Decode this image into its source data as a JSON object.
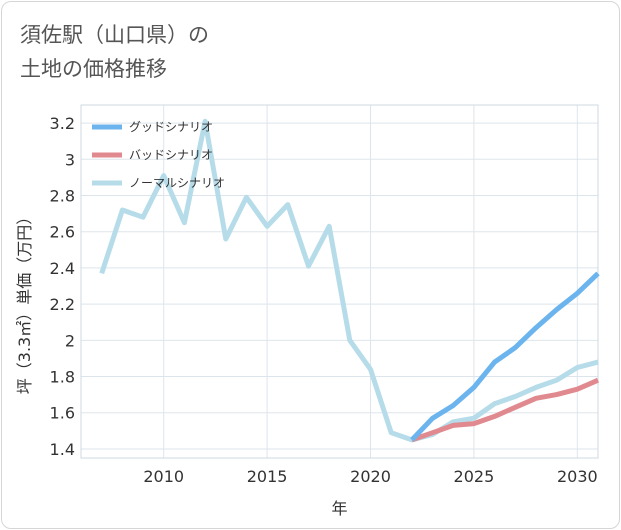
{
  "title_lines": [
    "須佐駅（山口県）の",
    "土地の価格推移"
  ],
  "chart_data": {
    "type": "line",
    "xlabel": "年",
    "ylabel": "坪（3.3㎡）単価（万円）",
    "xlim": [
      2006,
      2031
    ],
    "ylim": [
      1.35,
      3.3
    ],
    "x_ticks": [
      2010,
      2015,
      2020,
      2025,
      2030
    ],
    "y_ticks": [
      1.4,
      1.6,
      1.8,
      2,
      2.2,
      2.4,
      2.6,
      2.8,
      3,
      3.2
    ],
    "x_tick_labels": [
      "2010",
      "2015",
      "2020",
      "2025",
      "2030"
    ],
    "y_tick_labels": [
      "1.4",
      "1.6",
      "1.8",
      "2",
      "2.2",
      "2.4",
      "2.6",
      "2.8",
      "3",
      "3.2"
    ],
    "grid": true,
    "legend_position": "top-left",
    "series": [
      {
        "name": "グッドシナリオ",
        "color": "#6cb4ee",
        "x": [
          2022,
          2023,
          2024,
          2025,
          2026,
          2027,
          2028,
          2029,
          2030,
          2031
        ],
        "y": [
          1.45,
          1.57,
          1.64,
          1.74,
          1.88,
          1.96,
          2.07,
          2.17,
          2.26,
          2.37
        ]
      },
      {
        "name": "バッドシナリオ",
        "color": "#e08a8f",
        "x": [
          2022,
          2023,
          2024,
          2025,
          2026,
          2027,
          2028,
          2029,
          2030,
          2031
        ],
        "y": [
          1.45,
          1.49,
          1.53,
          1.54,
          1.58,
          1.63,
          1.68,
          1.7,
          1.73,
          1.78
        ]
      },
      {
        "name": "ノーマルシナリオ",
        "color": "#b6dcea",
        "x": [
          2007,
          2008,
          2009,
          2010,
          2011,
          2012,
          2013,
          2014,
          2015,
          2016,
          2017,
          2018,
          2019,
          2020,
          2021,
          2022,
          2023,
          2024,
          2025,
          2026,
          2027,
          2028,
          2029,
          2030,
          2031
        ],
        "y": [
          2.37,
          2.72,
          2.68,
          2.91,
          2.65,
          3.21,
          2.56,
          2.79,
          2.63,
          2.75,
          2.41,
          2.63,
          2.0,
          1.84,
          1.49,
          1.45,
          1.48,
          1.55,
          1.57,
          1.65,
          1.69,
          1.74,
          1.78,
          1.85,
          1.88
        ]
      }
    ]
  }
}
